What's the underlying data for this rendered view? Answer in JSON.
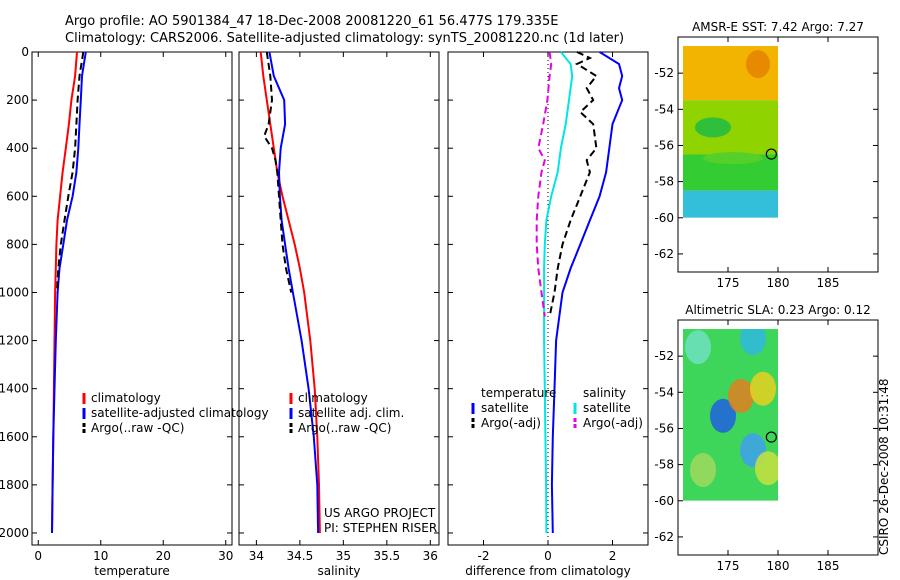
{
  "title": {
    "line1": "Argo profile: AO 5901384_47 18-Dec-2008 20081220_61 56.477S 179.335E",
    "line2": "Climatology: CARS2006. Satellite-adjusted climatology: synTS_20081220.nc (1d later)"
  },
  "side_label": "CSIRO 26-Dec-2008 10:31:48",
  "chart_data": [
    {
      "type": "line",
      "panel": "temperature",
      "xlabel": "temperature",
      "ylabel": "",
      "xlim": [
        -1,
        31
      ],
      "ylim": [
        2050,
        0
      ],
      "xticks": [
        "0",
        "10",
        "20",
        "30"
      ],
      "xtick_values": [
        0,
        10,
        20,
        30
      ],
      "yticks": [
        "0",
        "200",
        "400",
        "600",
        "800",
        "1000",
        "1200",
        "1400",
        "1600",
        "1800",
        "2000"
      ],
      "ytick_values": [
        0,
        200,
        400,
        600,
        800,
        1000,
        1200,
        1400,
        1600,
        1800,
        2000
      ],
      "legend": [
        "climatology",
        "satellite-adjusted climatology",
        "Argo(..raw -QC)"
      ],
      "legend_position": "lower-right",
      "series": [
        {
          "name": "climatology",
          "color": "#ff0000",
          "style": "solid",
          "depth": [
            0,
            100,
            200,
            300,
            400,
            500,
            600,
            700,
            800,
            900,
            1000,
            1200,
            1400,
            1600,
            1800,
            2000
          ],
          "values": [
            6.2,
            5.9,
            5.3,
            4.9,
            4.4,
            3.9,
            3.5,
            3.1,
            2.9,
            2.8,
            2.7,
            2.6,
            2.5,
            2.4,
            2.3,
            2.2
          ]
        },
        {
          "name": "satellite-adjusted climatology",
          "color": "#0000ff",
          "style": "solid",
          "depth": [
            0,
            50,
            100,
            200,
            300,
            400,
            500,
            600,
            700,
            800,
            900,
            1000,
            1200,
            1400,
            1600,
            1800,
            2000
          ],
          "values": [
            7.6,
            7.3,
            7.0,
            6.8,
            6.6,
            6.4,
            6.1,
            5.5,
            4.6,
            4.0,
            3.4,
            3.1,
            2.8,
            2.6,
            2.4,
            2.3,
            2.2
          ]
        },
        {
          "name": "Argo(..raw -QC)",
          "color": "#000000",
          "style": "dashed",
          "depth": [
            0,
            50,
            100,
            200,
            300,
            400,
            500,
            600,
            700,
            800,
            900,
            1000
          ],
          "values": [
            7.2,
            6.9,
            6.6,
            6.3,
            6.1,
            5.9,
            5.5,
            4.8,
            4.2,
            3.6,
            3.2,
            3.0
          ]
        }
      ]
    },
    {
      "type": "line",
      "panel": "salinity",
      "xlabel": "salinity",
      "ylabel": "",
      "xlim": [
        33.8,
        36.1
      ],
      "ylim": [
        2050,
        0
      ],
      "xticks": [
        "34",
        "34.5",
        "35",
        "35.5",
        "36"
      ],
      "xtick_values": [
        34,
        34.5,
        35,
        35.5,
        36
      ],
      "legend": [
        "climatology",
        "satellite adj. clim.",
        "Argo(..raw -QC)"
      ],
      "legend_position": "lower-right",
      "annotation": [
        "US ARGO PROJECT",
        "PI: STEPHEN RISER"
      ],
      "series": [
        {
          "name": "climatology",
          "color": "#ff0000",
          "style": "solid",
          "depth": [
            0,
            100,
            200,
            300,
            400,
            500,
            600,
            700,
            800,
            900,
            1000,
            1200,
            1400,
            1600,
            1800,
            2000
          ],
          "values": [
            34.05,
            34.08,
            34.12,
            34.16,
            34.2,
            34.24,
            34.3,
            34.37,
            34.44,
            34.5,
            34.55,
            34.62,
            34.67,
            34.7,
            34.72,
            34.73
          ]
        },
        {
          "name": "satellite adj. clim.",
          "color": "#0000ff",
          "style": "solid",
          "depth": [
            0,
            100,
            200,
            300,
            400,
            500,
            600,
            700,
            800,
            900,
            1000,
            1200,
            1400,
            1600,
            1800,
            2000
          ],
          "values": [
            34.15,
            34.2,
            34.32,
            34.33,
            34.28,
            34.26,
            34.27,
            34.29,
            34.33,
            34.37,
            34.42,
            34.52,
            34.6,
            34.66,
            34.7,
            34.71
          ]
        },
        {
          "name": "Argo(..raw -QC)",
          "color": "#000000",
          "style": "dashed",
          "depth": [
            0,
            100,
            200,
            300,
            350,
            400,
            450,
            500,
            600,
            700,
            800,
            900,
            1000
          ],
          "values": [
            34.12,
            34.16,
            34.18,
            34.14,
            34.09,
            34.18,
            34.22,
            34.24,
            34.26,
            34.28,
            34.3,
            34.34,
            34.4
          ]
        }
      ]
    },
    {
      "type": "line",
      "panel": "difference",
      "xlabel": "difference from climatology",
      "ylabel": "",
      "xlim": [
        -3.1,
        3.1
      ],
      "ylim": [
        2050,
        0
      ],
      "xticks": [
        "-2",
        "0",
        "2"
      ],
      "xtick_values": [
        -2,
        0,
        2
      ],
      "legend_headers": [
        "temperature",
        "salinity"
      ],
      "legend": [
        "satellite",
        "Argo(-adj)",
        "satellite",
        "Argo(-adj)"
      ],
      "legend_position": "lower-center",
      "series": [
        {
          "name": "satellite",
          "group": "temperature",
          "color": "#0000ff",
          "style": "solid",
          "depth": [
            0,
            50,
            100,
            150,
            200,
            300,
            400,
            500,
            600,
            700,
            800,
            900,
            1000,
            1100,
            1200,
            1400,
            1600,
            1800,
            2000
          ],
          "values": [
            1.6,
            2.2,
            2.3,
            2.2,
            2.3,
            2.0,
            1.9,
            1.8,
            1.6,
            1.3,
            1.0,
            0.7,
            0.45,
            0.35,
            0.25,
            0.2,
            0.15,
            0.12,
            0.15
          ]
        },
        {
          "name": "Argo(-adj)",
          "group": "temperature",
          "color": "#000000",
          "style": "dashed",
          "depth": [
            0,
            25,
            50,
            100,
            150,
            200,
            250,
            300,
            400,
            450,
            500,
            600,
            700,
            800,
            900,
            1000,
            1100
          ],
          "values": [
            0.9,
            1.3,
            0.9,
            1.5,
            1.2,
            1.4,
            1.0,
            1.4,
            1.5,
            1.2,
            1.3,
            1.0,
            0.7,
            0.45,
            0.3,
            0.2,
            0.05
          ]
        },
        {
          "name": "satellite",
          "group": "salinity",
          "color": "#00e5e5",
          "style": "solid",
          "depth": [
            0,
            50,
            100,
            200,
            300,
            400,
            500,
            600,
            700,
            800,
            900,
            1000,
            1200,
            1400,
            1600,
            1800,
            2000
          ],
          "values": [
            0.4,
            0.7,
            0.75,
            0.65,
            0.55,
            0.4,
            0.3,
            0.1,
            -0.05,
            -0.1,
            -0.12,
            -0.12,
            -0.12,
            -0.1,
            -0.08,
            -0.06,
            -0.05
          ]
        },
        {
          "name": "Argo(-adj)",
          "group": "salinity",
          "color": "#e600e6",
          "style": "dashed",
          "depth": [
            0,
            50,
            100,
            200,
            300,
            400,
            450,
            500,
            600,
            700,
            800,
            900,
            1000,
            1100
          ],
          "values": [
            0.05,
            0.1,
            0.05,
            -0.02,
            -0.15,
            -0.3,
            -0.1,
            -0.2,
            -0.3,
            -0.35,
            -0.35,
            -0.3,
            -0.2,
            -0.1
          ]
        }
      ]
    },
    {
      "type": "heatmap",
      "panel": "sst-map",
      "title": "AMSR-E SST: 7.42 Argo: 7.27",
      "xlim": [
        170,
        190
      ],
      "ylim": [
        -63,
        -50
      ],
      "xticks": [
        "175",
        "180",
        "185"
      ],
      "xtick_values": [
        175,
        180,
        185
      ],
      "yticks": [
        "-52",
        "-54",
        "-56",
        "-58",
        "-60",
        "-62"
      ],
      "ytick_values": [
        -52,
        -54,
        -56,
        -58,
        -60,
        -62
      ],
      "data_extent": {
        "lon": [
          170.5,
          180
        ],
        "lat": [
          -60,
          -50.5
        ]
      },
      "marker": {
        "lon": 179.335,
        "lat": -56.477
      },
      "color_bands": [
        {
          "lat_from": -50.5,
          "lat_to": -53.5,
          "color": "#f2b400"
        },
        {
          "lat_from": -53.5,
          "lat_to": -56.5,
          "color": "#8fd400"
        },
        {
          "lat_from": -56.5,
          "lat_to": -58.5,
          "color": "#33cc33"
        },
        {
          "lat_from": -58.5,
          "lat_to": -60,
          "color": "#33bfd9"
        }
      ]
    },
    {
      "type": "heatmap",
      "panel": "sla-map",
      "title": "Altimetric SLA: 0.23 Argo: 0.12",
      "xlim": [
        170,
        190
      ],
      "ylim": [
        -63,
        -50
      ],
      "xticks": [
        "175",
        "180",
        "185"
      ],
      "xtick_values": [
        175,
        180,
        185
      ],
      "yticks": [
        "-52",
        "-54",
        "-56",
        "-58",
        "-60",
        "-62"
      ],
      "ytick_values": [
        -52,
        -54,
        -56,
        -58,
        -60,
        -62
      ],
      "data_extent": {
        "lon": [
          170.5,
          180
        ],
        "lat": [
          -60,
          -50.5
        ]
      },
      "marker": {
        "lon": 179.335,
        "lat": -56.477
      },
      "base_color": "#3dd65a",
      "features": [
        {
          "lon": 172.0,
          "lat": -51.5,
          "color": "#6fe0c0"
        },
        {
          "lon": 177.5,
          "lat": -51.0,
          "color": "#30b8e0"
        },
        {
          "lon": 174.5,
          "lat": -55.3,
          "color": "#2060e0"
        },
        {
          "lon": 177.5,
          "lat": -57.2,
          "color": "#40a0f0"
        },
        {
          "lon": 176.3,
          "lat": -54.2,
          "color": "#e08020"
        },
        {
          "lon": 178.5,
          "lat": -53.8,
          "color": "#e8d020"
        },
        {
          "lon": 179.0,
          "lat": -58.2,
          "color": "#c8e040"
        },
        {
          "lon": 172.5,
          "lat": -58.3,
          "color": "#a0d860"
        }
      ]
    }
  ]
}
